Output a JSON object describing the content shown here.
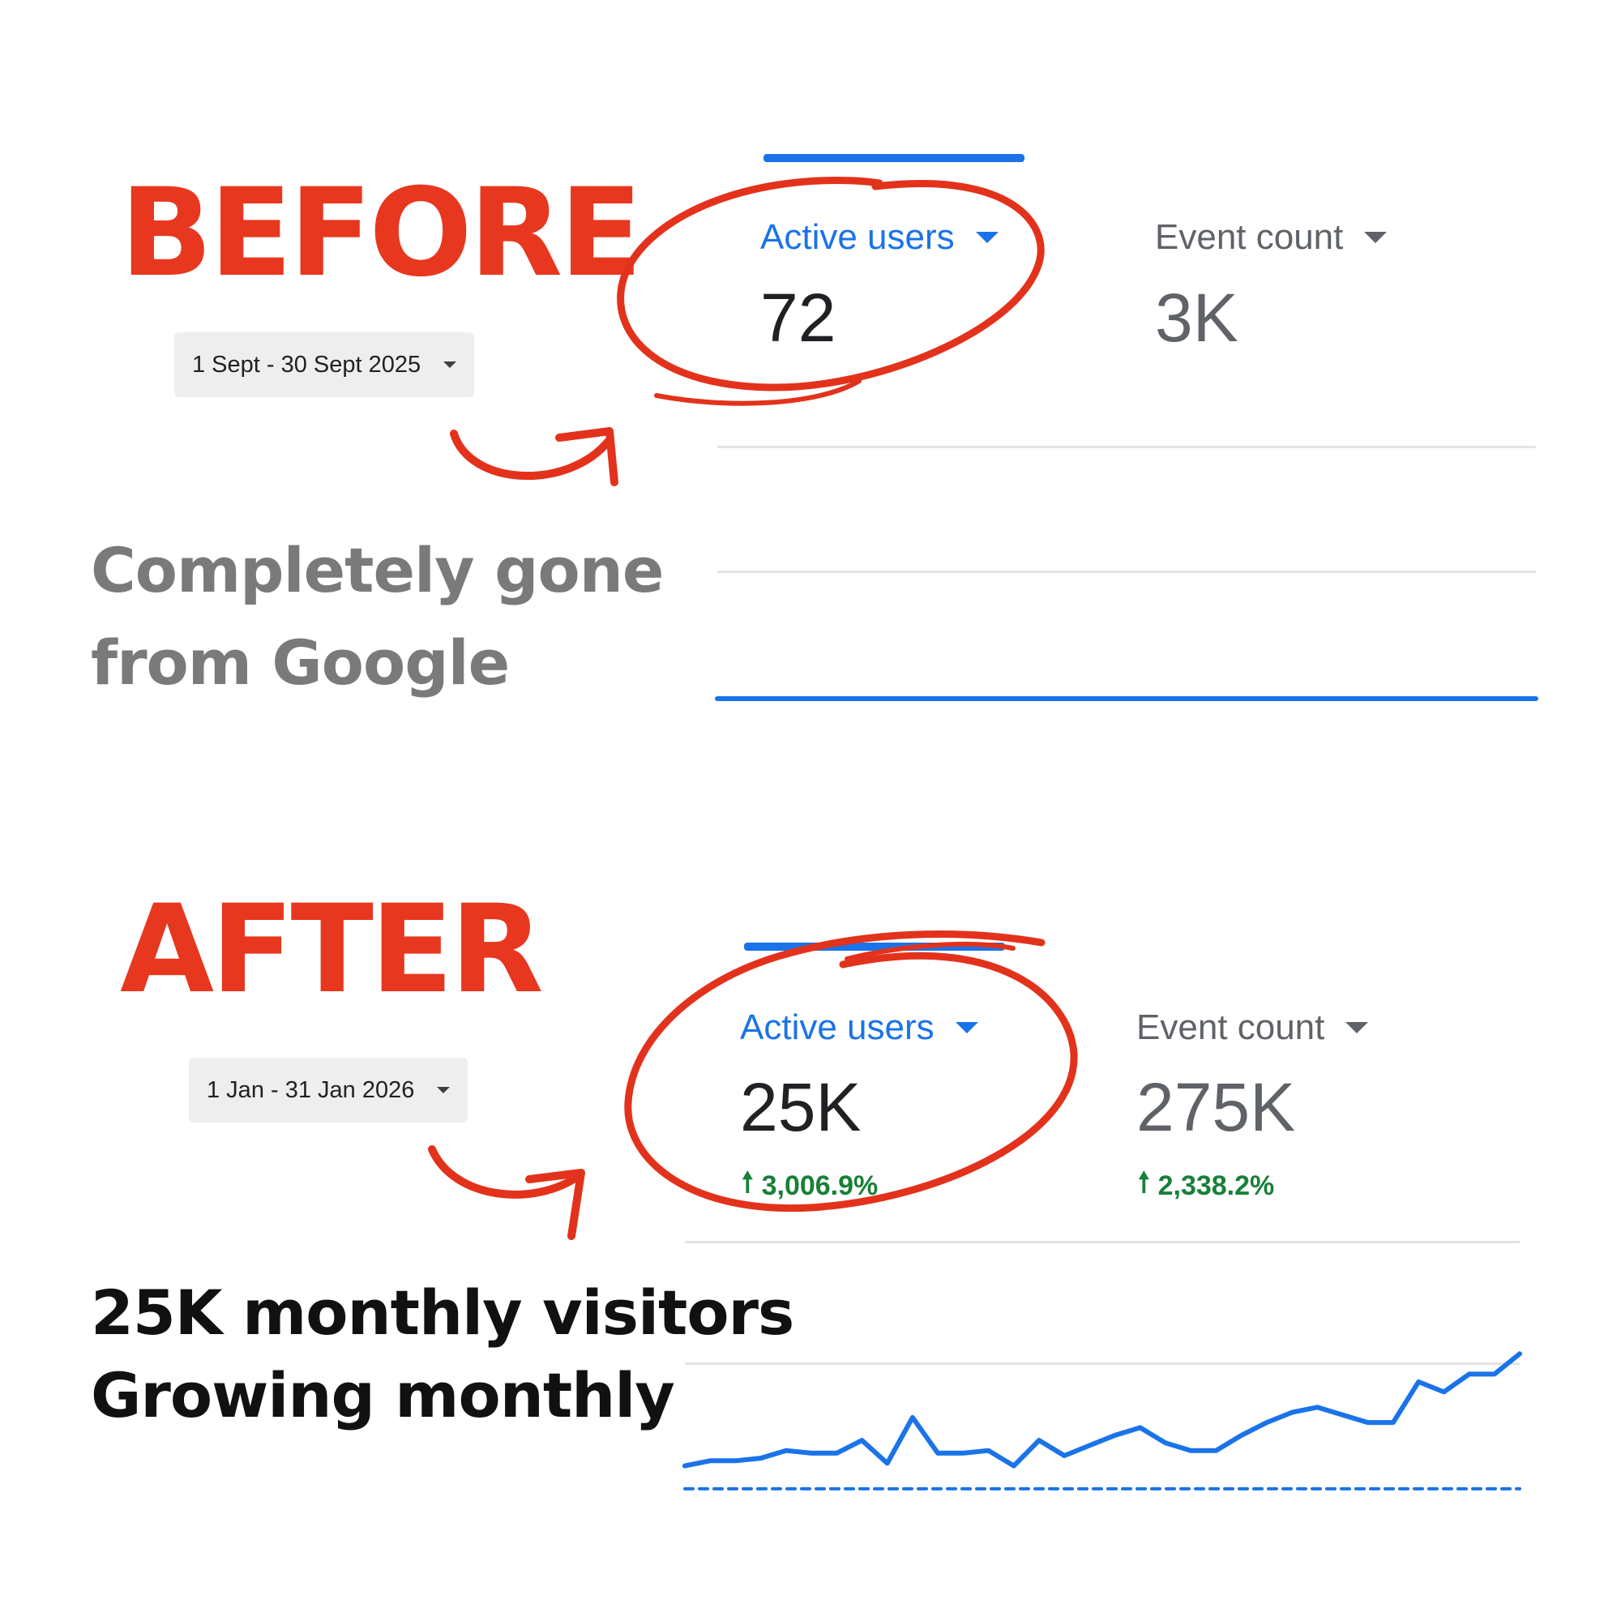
{
  "before": {
    "headline": "BEFORE",
    "date_range": "1 Sept - 30 Sept 2025",
    "caption_line1": "Completely gone",
    "caption_line2": "from Google",
    "metrics": [
      {
        "label": "Active users",
        "value": "72"
      },
      {
        "label": "Event count",
        "value": "3K"
      }
    ]
  },
  "after": {
    "headline": "AFTER",
    "date_range": "1 Jan - 31 Jan 2026",
    "caption_line1": "25K monthly visitors",
    "caption_line2": "Growing monthly",
    "metrics": [
      {
        "label": "Active users",
        "value": "25K",
        "change": "3,006.9%"
      },
      {
        "label": "Event count",
        "value": "275K",
        "change": "2,338.2%"
      }
    ]
  },
  "colors": {
    "headline": "#e8371f",
    "accent_blue": "#1a73e8",
    "positive_green": "#188038",
    "annotation_red": "#e3321c"
  },
  "icons": [
    "chevron-down-icon",
    "arrow-up-icon",
    "curved-arrow-icon",
    "circle-annotation"
  ],
  "chart_data": [
    {
      "type": "line",
      "x": [
        1,
        2,
        3,
        4,
        5,
        6,
        7,
        8,
        9,
        10,
        11,
        12,
        13,
        14,
        15,
        16,
        17,
        18,
        19,
        20,
        21,
        22,
        23,
        24,
        25,
        26,
        27,
        28,
        29,
        30,
        31,
        32,
        33,
        34,
        35,
        36,
        37,
        38,
        39,
        40,
        41,
        42,
        43,
        44,
        45,
        46,
        47,
        48,
        49,
        50,
        51,
        52,
        53,
        54,
        55,
        56
      ],
      "series": [
        {
          "values": [
            0,
            0,
            0,
            0,
            0,
            0,
            0,
            0,
            0,
            0,
            0,
            0,
            0,
            0,
            0,
            0,
            0,
            0,
            0,
            0,
            0,
            0,
            0,
            0,
            0,
            0,
            0,
            0,
            0,
            0,
            0,
            0,
            0,
            0,
            0,
            0,
            0,
            0,
            0,
            0,
            0,
            0,
            0,
            0,
            0,
            0,
            0,
            0,
            0,
            0,
            0,
            0,
            0,
            0,
            0,
            0
          ]
        }
      ],
      "ylim": [
        0,
        10
      ],
      "grid": true
    },
    {
      "type": "line",
      "x": [
        1,
        2,
        3,
        4,
        5,
        6,
        7,
        8,
        9,
        10,
        11,
        12,
        13,
        14,
        15,
        16,
        17,
        18,
        19,
        20,
        21,
        22,
        23,
        24,
        25,
        26,
        27,
        28,
        29,
        30,
        31,
        32,
        33,
        34
      ],
      "series": [
        {
          "values": [
            10,
            12,
            12,
            13,
            16,
            15,
            15,
            20,
            11,
            29,
            15,
            15,
            16,
            10,
            20,
            14,
            18,
            22,
            25,
            19,
            16,
            16,
            22,
            27,
            31,
            33,
            30,
            27,
            27,
            43,
            39,
            46,
            46,
            54
          ],
          "style": "solid"
        },
        {
          "values": [
            1,
            1,
            1,
            1,
            1,
            1,
            1,
            1,
            1,
            1,
            1,
            1,
            1,
            1,
            1,
            1,
            1,
            1,
            1,
            1,
            1,
            1,
            1,
            1,
            1,
            1,
            1,
            1,
            1,
            1,
            1,
            1,
            1,
            1
          ],
          "style": "dashed"
        }
      ],
      "ylim": [
        0,
        70
      ],
      "grid": true
    }
  ]
}
